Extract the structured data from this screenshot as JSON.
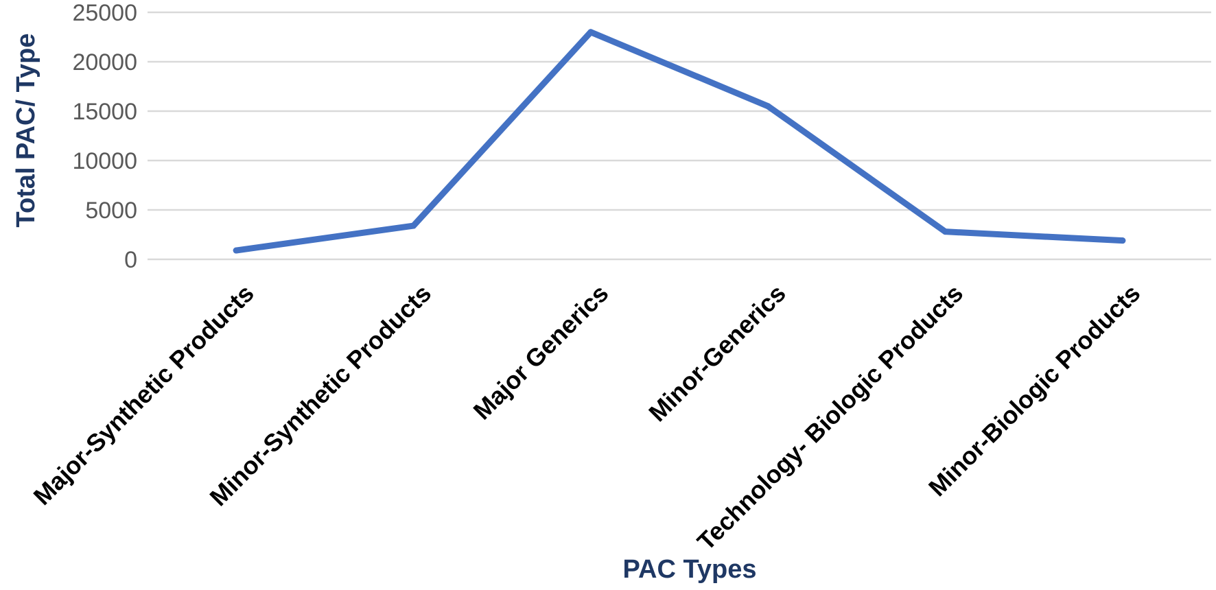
{
  "chart_data": {
    "type": "line",
    "categories": [
      "Major-Synthetic Products",
      "Minor-Synthetic Products",
      "Major Generics",
      "Minor-Generics",
      "Technology- Biologic Products",
      "Minor-Biologic Products"
    ],
    "series": [
      {
        "values": [
          900,
          3400,
          23000,
          15500,
          2800,
          1900
        ]
      }
    ],
    "title": "",
    "xlabel": "PAC Types",
    "ylabel": "Total PAC/ Type",
    "ylim": [
      0,
      25000
    ],
    "yticks": [
      0,
      5000,
      10000,
      15000,
      20000,
      25000
    ],
    "grid": true,
    "legend": "none",
    "colors": {
      "line": "#4472C4",
      "grid": "#D9D9D9",
      "axis_title": "#1F3864",
      "tick_text": "#595959",
      "category_text": "#000000"
    }
  }
}
